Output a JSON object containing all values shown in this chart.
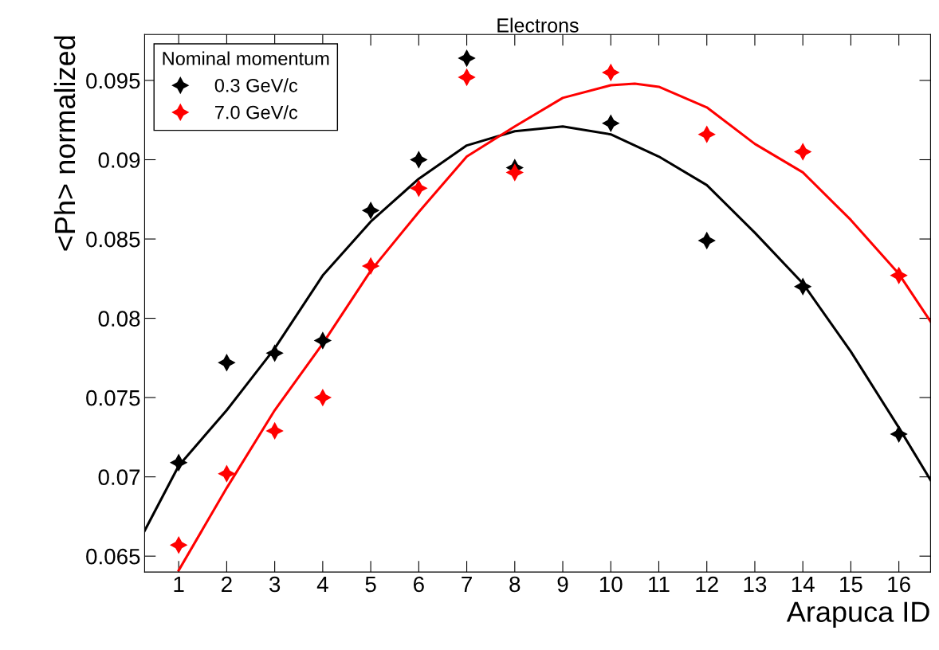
{
  "chart_data": {
    "type": "scatter",
    "title": "Electrons",
    "xlabel": "Arapuca ID",
    "ylabel": "<Ph> normalized",
    "legend_title": "Nominal momentum",
    "xlim": [
      0.29,
      16.66
    ],
    "xticks": [
      1,
      2,
      3,
      4,
      5,
      6,
      7,
      8,
      9,
      10,
      11,
      12,
      13,
      14,
      15,
      16
    ],
    "ylim": [
      0.064,
      0.0979
    ],
    "yticks": [
      {
        "value": 0.065,
        "label": "0.065"
      },
      {
        "value": 0.07,
        "label": "0.07"
      },
      {
        "value": 0.075,
        "label": "0.075"
      },
      {
        "value": 0.08,
        "label": "0.08"
      },
      {
        "value": 0.085,
        "label": "0.085"
      },
      {
        "value": 0.09,
        "label": "0.09"
      },
      {
        "value": 0.095,
        "label": "0.095"
      }
    ],
    "grid": false,
    "legend": "top left",
    "marker": "star",
    "series": [
      {
        "name": "0.3 GeV/c",
        "color": "#000000",
        "x": [
          1,
          2,
          3,
          4,
          5,
          6,
          7,
          8,
          10,
          12,
          14,
          16
        ],
        "values": [
          0.0709,
          0.0772,
          0.0778,
          0.0786,
          0.0868,
          0.09,
          0.0964,
          0.0895,
          0.0923,
          0.0849,
          0.082,
          0.0727
        ]
      },
      {
        "name": "7.0 GeV/c",
        "color": "#ff0000",
        "x": [
          1,
          2,
          3,
          4,
          5,
          6,
          7,
          8,
          10,
          12,
          14,
          16
        ],
        "values": [
          0.0657,
          0.0702,
          0.0729,
          0.075,
          0.0833,
          0.0882,
          0.0952,
          0.0892,
          0.0955,
          0.0916,
          0.0905,
          0.0827
        ]
      },
      {
        "type": "line",
        "marker": "none",
        "color": "#000000",
        "x": [
          0.29,
          1,
          2,
          3,
          4,
          5,
          6,
          7,
          8,
          9,
          10,
          11,
          12,
          13,
          14,
          15,
          16,
          16.66
        ],
        "values": [
          0.0666,
          0.0707,
          0.0742,
          0.0781,
          0.0827,
          0.0861,
          0.0888,
          0.0909,
          0.0918,
          0.0921,
          0.0916,
          0.0902,
          0.0884,
          0.0854,
          0.0822,
          0.0779,
          0.0731,
          0.0698
        ]
      },
      {
        "type": "line",
        "marker": "none",
        "color": "#ff0000",
        "x": [
          1,
          2,
          3,
          4,
          5,
          6,
          7,
          8,
          9,
          10,
          10.5,
          11,
          12,
          13,
          14,
          15,
          16,
          16.66
        ],
        "values": [
          0.0641,
          0.0693,
          0.0742,
          0.0784,
          0.083,
          0.0867,
          0.0902,
          0.0921,
          0.0939,
          0.0947,
          0.0948,
          0.0946,
          0.0933,
          0.091,
          0.0892,
          0.0862,
          0.0828,
          0.0798
        ]
      }
    ]
  }
}
